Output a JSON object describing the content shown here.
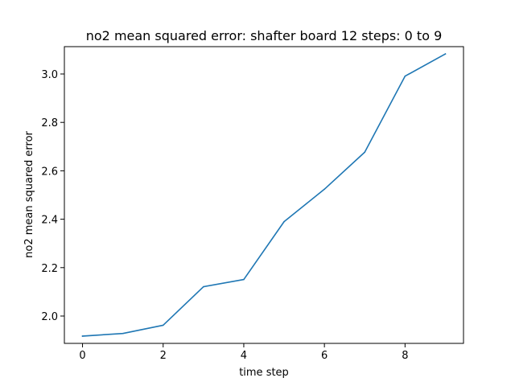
{
  "chart_data": {
    "type": "line",
    "title": "no2 mean squared error: shafter board 12 steps: 0 to 9",
    "xlabel": "time step",
    "ylabel": "no2 mean squared error",
    "xlim": [
      -0.45,
      9.45
    ],
    "ylim": [
      1.887,
      3.113
    ],
    "x_ticks": [
      0,
      2,
      4,
      6,
      8
    ],
    "x_tick_labels": [
      "0",
      "2",
      "4",
      "6",
      "8"
    ],
    "y_ticks": [
      2.0,
      2.2,
      2.4,
      2.6,
      2.8,
      3.0
    ],
    "y_tick_labels": [
      "2.0",
      "2.2",
      "2.4",
      "2.6",
      "2.8",
      "3.0"
    ],
    "grid": false,
    "legend": false,
    "series": [
      {
        "color": "#1f77b4",
        "x": [
          0,
          1,
          2,
          3,
          4,
          5,
          6,
          7,
          8,
          9
        ],
        "values": [
          1.917,
          1.928,
          1.962,
          2.121,
          2.151,
          2.39,
          2.524,
          2.677,
          2.991,
          3.083
        ]
      }
    ]
  }
}
